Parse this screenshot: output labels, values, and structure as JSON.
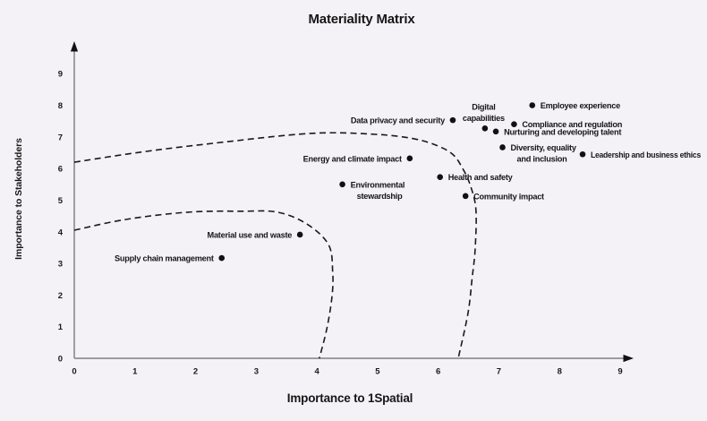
{
  "title": "Materiality Matrix",
  "colors": {
    "background": "#f4f1f7",
    "axis_line": "#8f8f8f",
    "arrow": "#111111",
    "text": "#161616",
    "point": "#111111",
    "curve": "#1a1a1a"
  },
  "chart_data": {
    "type": "scatter",
    "title": "Materiality Matrix",
    "xlabel": "Importance to 1Spatial",
    "ylabel": "Importance to Stakeholders",
    "xlim": [
      0,
      9
    ],
    "ylim": [
      0,
      9
    ],
    "x_ticks": [
      "0",
      "1",
      "2",
      "3",
      "4",
      "5",
      "6",
      "7",
      "8",
      "9"
    ],
    "y_ticks": [
      "0",
      "1",
      "2",
      "3",
      "4",
      "5",
      "6",
      "7",
      "8",
      "9"
    ],
    "grid": false,
    "legend": "none",
    "marker": "filled-circle",
    "points": [
      {
        "label": "Employee experience",
        "x": 7.55,
        "y": 8.0,
        "label_side": "right",
        "label_lines": [
          "Employee experience"
        ]
      },
      {
        "label": "Data privacy and security",
        "x": 6.24,
        "y": 7.53,
        "label_side": "left",
        "label_lines": [
          "Data privacy and security"
        ]
      },
      {
        "label": "Digital capabilities",
        "x": 6.77,
        "y": 7.27,
        "label_side": "above",
        "label_lines": [
          "Digital",
          "capabilities"
        ]
      },
      {
        "label": "Compliance and regulation",
        "x": 7.25,
        "y": 7.4,
        "label_side": "right",
        "label_lines": [
          "Compliance and regulation"
        ]
      },
      {
        "label": "Nurturing and developing talent",
        "x": 6.95,
        "y": 7.17,
        "label_side": "right",
        "label_lines": [
          "Nurturing and developing talent"
        ]
      },
      {
        "label": "Diversity, equality and inclusion",
        "x": 7.06,
        "y": 6.67,
        "label_side": "right",
        "label_lines": [
          "Diversity, equality",
          "and inclusion"
        ]
      },
      {
        "label": "Leadership and business ethics",
        "x": 8.38,
        "y": 6.45,
        "label_side": "right",
        "label_lines": [
          "Leadership and business ethics"
        ]
      },
      {
        "label": "Energy and climate impact",
        "x": 5.53,
        "y": 6.32,
        "label_side": "left",
        "label_lines": [
          "Energy and climate impact"
        ]
      },
      {
        "label": "Health and safety",
        "x": 6.03,
        "y": 5.73,
        "label_side": "right",
        "label_lines": [
          "Health and safety"
        ]
      },
      {
        "label": "Community impact",
        "x": 6.45,
        "y": 5.13,
        "label_side": "right",
        "label_lines": [
          "Community impact"
        ]
      },
      {
        "label": "Environmental stewardship",
        "x": 4.42,
        "y": 5.5,
        "label_side": "right",
        "label_lines": [
          "Environmental",
          "stewardship"
        ]
      },
      {
        "label": "Material use and waste",
        "x": 3.72,
        "y": 3.91,
        "label_side": "left",
        "label_lines": [
          "Material use and waste"
        ]
      },
      {
        "label": "Supply chain management",
        "x": 2.43,
        "y": 3.17,
        "label_side": "left",
        "label_lines": [
          "Supply chain management"
        ]
      }
    ],
    "boundary_curves": [
      {
        "name": "upper-boundary",
        "style": "dashed",
        "points": [
          [
            0,
            6.2
          ],
          [
            1.1,
            6.52
          ],
          [
            2.3,
            6.8
          ],
          [
            3.9,
            7.11
          ],
          [
            4.97,
            7.08
          ],
          [
            5.6,
            6.94
          ],
          [
            6.0,
            6.71
          ],
          [
            6.25,
            6.43
          ],
          [
            6.4,
            6.01
          ],
          [
            6.52,
            5.52
          ],
          [
            6.62,
            4.73
          ],
          [
            6.61,
            3.48
          ],
          [
            6.56,
            2.55
          ],
          [
            6.49,
            1.42
          ],
          [
            6.33,
            0
          ]
        ]
      },
      {
        "name": "lower-boundary",
        "style": "dashed",
        "points": [
          [
            0,
            4.05
          ],
          [
            0.85,
            4.39
          ],
          [
            1.87,
            4.62
          ],
          [
            2.76,
            4.65
          ],
          [
            3.35,
            4.62
          ],
          [
            3.83,
            4.25
          ],
          [
            4.19,
            3.6
          ],
          [
            4.26,
            2.75
          ],
          [
            4.25,
            1.98
          ],
          [
            4.17,
            0.99
          ],
          [
            4.04,
            0
          ]
        ]
      }
    ]
  }
}
